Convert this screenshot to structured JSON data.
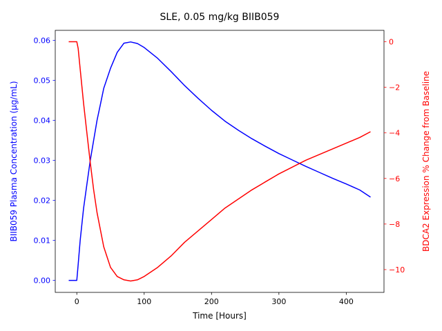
{
  "chart_data": {
    "type": "line",
    "title": "SLE, 0.05 mg/kg BIIB059",
    "xlabel": "Time [Hours]",
    "xlim": [
      -32,
      456
    ],
    "xticks": [
      0,
      100,
      200,
      300,
      400
    ],
    "left_axis": {
      "label": "BIIB059 Plasma Concentration (µg/mL)",
      "color": "#0000ff",
      "ylim": [
        -0.003,
        0.0625
      ],
      "ticks": [
        "0.00",
        "0.01",
        "0.02",
        "0.03",
        "0.04",
        "0.05",
        "0.06"
      ],
      "tick_values": [
        0,
        0.01,
        0.02,
        0.03,
        0.04,
        0.05,
        0.06
      ]
    },
    "right_axis": {
      "label": "BDCA2 Expression % Change from Baseline",
      "color": "#ff0000",
      "ylim": [
        -11.0,
        0.5
      ],
      "ticks": [
        "0",
        "−2",
        "−4",
        "−6",
        "−8",
        "−10"
      ],
      "tick_values": [
        0,
        -2,
        -4,
        -6,
        -8,
        -10
      ]
    },
    "series": [
      {
        "axis": "left",
        "color": "#0000ff",
        "x": [
          -12,
          0,
          2,
          5,
          10,
          15,
          20,
          25,
          30,
          35,
          40,
          50,
          60,
          70,
          80,
          90,
          100,
          120,
          140,
          160,
          180,
          200,
          220,
          240,
          260,
          280,
          300,
          320,
          340,
          360,
          380,
          400,
          420,
          436
        ],
        "y": [
          0,
          0,
          0.004,
          0.01,
          0.018,
          0.024,
          0.03,
          0.035,
          0.04,
          0.044,
          0.048,
          0.053,
          0.057,
          0.0593,
          0.0596,
          0.0592,
          0.0582,
          0.0555,
          0.0522,
          0.0487,
          0.0455,
          0.0425,
          0.0398,
          0.0375,
          0.0354,
          0.0335,
          0.0317,
          0.0301,
          0.0285,
          0.027,
          0.0255,
          0.0241,
          0.0226,
          0.0208
        ]
      },
      {
        "axis": "right",
        "color": "#ff0000",
        "x": [
          -12,
          0,
          2,
          5,
          10,
          15,
          20,
          25,
          30,
          40,
          50,
          60,
          70,
          80,
          90,
          100,
          120,
          140,
          160,
          180,
          200,
          220,
          240,
          260,
          280,
          300,
          320,
          340,
          360,
          380,
          400,
          420,
          436
        ],
        "y": [
          0,
          0,
          -0.3,
          -1.2,
          -2.7,
          -4.0,
          -5.3,
          -6.5,
          -7.5,
          -9.0,
          -9.9,
          -10.3,
          -10.45,
          -10.5,
          -10.45,
          -10.3,
          -9.9,
          -9.4,
          -8.8,
          -8.3,
          -7.8,
          -7.3,
          -6.9,
          -6.5,
          -6.15,
          -5.8,
          -5.5,
          -5.2,
          -4.95,
          -4.7,
          -4.45,
          -4.2,
          -3.95
        ]
      }
    ]
  }
}
